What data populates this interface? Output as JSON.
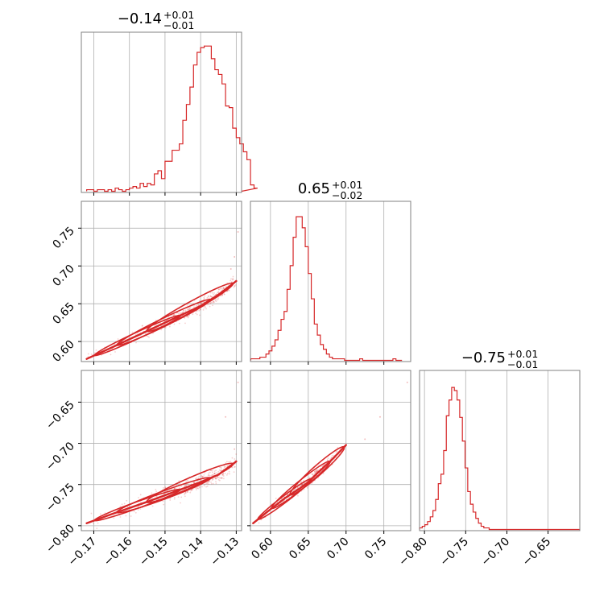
{
  "chart_data": {
    "type": "corner",
    "color": "#d62728",
    "parameters": [
      {
        "summary": {
          "value": "−0.14",
          "plus": "+0.01",
          "minus": "−0.01"
        },
        "range": [
          -0.1735,
          -0.1285
        ]
      },
      {
        "summary": {
          "value": "0.65",
          "plus": "+0.01",
          "minus": "−0.02"
        },
        "range": [
          0.5735,
          0.7855
        ]
      },
      {
        "summary": {
          "value": "−0.75",
          "plus": "+0.01",
          "minus": "−0.01"
        },
        "range": [
          -0.806,
          -0.6115
        ]
      }
    ],
    "ticks": [
      {
        "values": [
          -0.17,
          -0.16,
          -0.15,
          -0.14,
          -0.13
        ],
        "labels": [
          "−0.17",
          "−0.16",
          "−0.15",
          "−0.14",
          "−0.13"
        ]
      },
      {
        "values": [
          0.6,
          0.65,
          0.7,
          0.75
        ],
        "labels": [
          "0.60",
          "0.65",
          "0.70",
          "0.75"
        ]
      },
      {
        "values": [
          -0.8,
          -0.75,
          -0.7,
          -0.65
        ],
        "labels": [
          "−0.80",
          "−0.75",
          "−0.70",
          "−0.65"
        ]
      }
    ],
    "histograms": [
      {
        "bin_start": -0.172,
        "bin_width": 0.001,
        "heights": [
          0.01,
          0.01,
          0.0,
          0.01,
          0.01,
          0.0,
          0.01,
          0.0,
          0.02,
          0.01,
          0.0,
          0.01,
          0.02,
          0.03,
          0.02,
          0.05,
          0.03,
          0.05,
          0.04,
          0.11,
          0.13,
          0.08,
          0.19,
          0.19,
          0.26,
          0.26,
          0.3,
          0.45,
          0.55,
          0.66,
          0.8,
          0.88,
          0.91,
          0.92,
          0.92,
          0.84,
          0.77,
          0.74,
          0.68,
          0.54,
          0.53,
          0.4,
          0.34,
          0.3,
          0.25,
          0.2,
          0.04,
          0.02
        ]
      },
      {
        "bin_start": 0.574,
        "bin_width": 0.004,
        "heights": [
          0.01,
          0.01,
          0.01,
          0.02,
          0.02,
          0.04,
          0.06,
          0.09,
          0.13,
          0.19,
          0.26,
          0.31,
          0.45,
          0.6,
          0.78,
          0.91,
          0.91,
          0.84,
          0.72,
          0.55,
          0.39,
          0.23,
          0.16,
          0.1,
          0.07,
          0.04,
          0.02,
          0.01,
          0.01,
          0.01,
          0.01,
          0.0,
          0.0,
          0.0,
          0.0,
          0.0,
          0.01,
          0.0,
          0.0,
          0.0,
          0.0,
          0.0,
          0.0,
          0.0,
          0.0,
          0.0,
          0.0,
          0.01,
          0.0,
          0.0
        ]
      },
      {
        "bin_start": -0.806,
        "bin_width": 0.00325,
        "heights": [
          0.01,
          0.02,
          0.03,
          0.05,
          0.08,
          0.12,
          0.19,
          0.29,
          0.35,
          0.5,
          0.72,
          0.82,
          0.9,
          0.88,
          0.82,
          0.71,
          0.56,
          0.39,
          0.24,
          0.16,
          0.11,
          0.07,
          0.04,
          0.02,
          0.01,
          0.01,
          0.0,
          0.0,
          0.0,
          0.0,
          0.0,
          0.0,
          0.0,
          0.0,
          0.0,
          0.0,
          0.0,
          0.0,
          0.0,
          0.0,
          0.0,
          0.0,
          0.0,
          0.0,
          0.0,
          0.0,
          0.0,
          0.0,
          0.0,
          0.0,
          0.0,
          0.0,
          0.0,
          0.0,
          0.0,
          0.0,
          0.0,
          0.0,
          0.0,
          0.0
        ]
      }
    ],
    "correlations": [
      {
        "x": 0,
        "y": 1,
        "curve": [
          [
            -0.172,
            0.577
          ],
          [
            -0.165,
            0.592
          ],
          [
            -0.155,
            0.614
          ],
          [
            -0.145,
            0.636
          ],
          [
            -0.14,
            0.647
          ],
          [
            -0.135,
            0.662
          ],
          [
            -0.13,
            0.68
          ]
        ],
        "spread": 0.0045,
        "outliers": [
          [
            -0.1295,
            0.745
          ],
          [
            -0.1315,
            0.696
          ],
          [
            -0.1305,
            0.712
          ]
        ]
      },
      {
        "x": 0,
        "y": 2,
        "curve": [
          [
            -0.172,
            -0.797
          ],
          [
            -0.165,
            -0.786
          ],
          [
            -0.155,
            -0.771
          ],
          [
            -0.145,
            -0.755
          ],
          [
            -0.14,
            -0.747
          ],
          [
            -0.135,
            -0.738
          ],
          [
            -0.13,
            -0.722
          ]
        ],
        "spread": 0.0055,
        "outliers": [
          [
            -0.1295,
            -0.626
          ],
          [
            -0.133,
            -0.668
          ],
          [
            -0.1305,
            -0.707
          ]
        ]
      },
      {
        "x": 1,
        "y": 2,
        "curve": [
          [
            0.577,
            -0.797
          ],
          [
            0.6,
            -0.78
          ],
          [
            0.62,
            -0.766
          ],
          [
            0.64,
            -0.754
          ],
          [
            0.65,
            -0.747
          ],
          [
            0.66,
            -0.738
          ],
          [
            0.68,
            -0.721
          ],
          [
            0.7,
            -0.702
          ]
        ],
        "spread": 0.003,
        "outliers": [
          [
            0.781,
            -0.626
          ],
          [
            0.745,
            -0.668
          ],
          [
            0.725,
            -0.695
          ]
        ]
      }
    ]
  }
}
